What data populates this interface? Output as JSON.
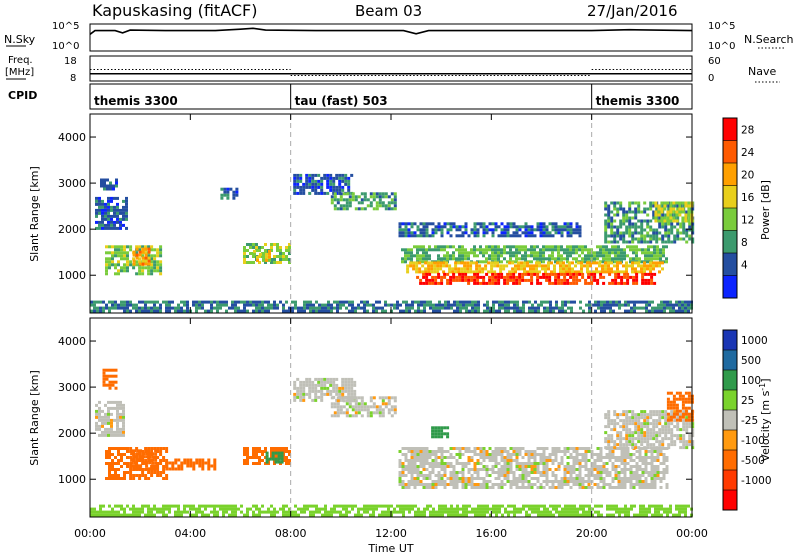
{
  "header": {
    "station": "Kapuskasing (fitACF)",
    "beam": "Beam 03",
    "date": "27/Jan/2016"
  },
  "strip_nsky": {
    "label": "N.Sky",
    "left_ticks": [
      "10^5",
      "10^0"
    ],
    "right_ticks": [
      "10^5",
      "10^0"
    ],
    "right_label": "N.Search",
    "nsky_trace": [
      {
        "t": 0.0,
        "v": 3.2
      },
      {
        "t": 0.2,
        "v": 4.0
      },
      {
        "t": 1.0,
        "v": 4.0
      },
      {
        "t": 1.3,
        "v": 3.5
      },
      {
        "t": 1.6,
        "v": 4.1
      },
      {
        "t": 3.0,
        "v": 4.0
      },
      {
        "t": 5.0,
        "v": 4.0
      },
      {
        "t": 6.0,
        "v": 4.3
      },
      {
        "t": 6.5,
        "v": 4.5
      },
      {
        "t": 7.0,
        "v": 4.1
      },
      {
        "t": 9.0,
        "v": 4.0
      },
      {
        "t": 12.5,
        "v": 4.0
      },
      {
        "t": 13.0,
        "v": 3.3
      },
      {
        "t": 13.5,
        "v": 4.0
      },
      {
        "t": 18.0,
        "v": 4.0
      },
      {
        "t": 20.0,
        "v": 4.0
      },
      {
        "t": 21.5,
        "v": 4.2
      },
      {
        "t": 24.0,
        "v": 4.0
      }
    ]
  },
  "strip_freq": {
    "label_top": "Freq.",
    "label_bottom": "[MHz]",
    "left_ticks": [
      "18",
      "8"
    ],
    "right_ticks": [
      "60",
      "0"
    ],
    "right_label": "Nave",
    "freq_mhz": 10.5,
    "nave_segments": [
      {
        "start": 0,
        "end": 8,
        "value": 27
      },
      {
        "start": 8,
        "end": 20,
        "value": 10
      },
      {
        "start": 20,
        "end": 24,
        "value": 27
      }
    ]
  },
  "cpid": {
    "label": "CPID",
    "segments": [
      {
        "start": 0,
        "end": 8,
        "name": "themis 3300"
      },
      {
        "start": 8,
        "end": 20,
        "name": "tau (fast) 503"
      },
      {
        "start": 20,
        "end": 24,
        "name": "themis 3300"
      }
    ]
  },
  "power_panel": {
    "ylabel": "Slant Range [km]",
    "yticks": [
      "4000",
      "3000",
      "2000",
      "1000"
    ],
    "ylim": [
      180,
      4500
    ]
  },
  "velocity_panel": {
    "ylabel": "Slant Range [km]",
    "yticks": [
      "4000",
      "3000",
      "2000",
      "1000"
    ],
    "ylim": [
      180,
      4500
    ]
  },
  "time_axis": {
    "label": "Time UT",
    "ticks": [
      "00:00",
      "04:00",
      "08:00",
      "12:00",
      "16:00",
      "20:00",
      "00:00"
    ],
    "range_hours": [
      0,
      24
    ]
  },
  "power_scale": {
    "label": "Power [dB]",
    "ticks": [
      "28",
      "24",
      "20",
      "16",
      "12",
      "8",
      "4"
    ],
    "colors": [
      "#ff0000",
      "#ff5a00",
      "#ffa000",
      "#e8cf1c",
      "#7acc3c",
      "#3c9a6e",
      "#244ea0",
      "#0c24ff"
    ]
  },
  "velocity_scale": {
    "label": "Velocity [m s",
    "label_sup": "-1",
    "label_end": "]",
    "ticks": [
      "1000",
      "500",
      "100",
      "25",
      "-25",
      "-100",
      "-500",
      "-1000"
    ],
    "colors": [
      "#1a36b4",
      "#1f6aa0",
      "#2f9a4a",
      "#7ad22c",
      "#c0c0b8",
      "#ff9a10",
      "#ff6c00",
      "#ff3a00",
      "#ff0000"
    ]
  },
  "chart_data": [
    {
      "type": "heatmap",
      "title": "Power",
      "xlabel": "Time UT",
      "ylabel": "Slant Range [km]",
      "xlim": [
        0,
        24
      ],
      "ylim": [
        180,
        4500
      ],
      "colorbar": "Power [dB]",
      "regions": [
        {
          "t0": 0.2,
          "t1": 1.4,
          "r0": 2000,
          "r1": 2700,
          "value": 6
        },
        {
          "t0": 0.6,
          "t1": 2.8,
          "r0": 1050,
          "r1": 1650,
          "value": 14
        },
        {
          "t0": 1.7,
          "t1": 2.4,
          "r0": 1250,
          "r1": 1600,
          "value": 22
        },
        {
          "t0": 0.4,
          "t1": 1.0,
          "r0": 2900,
          "r1": 3100,
          "value": 6
        },
        {
          "t0": 5.2,
          "t1": 5.8,
          "r0": 2700,
          "r1": 2900,
          "value": 6
        },
        {
          "t0": 6.1,
          "t1": 7.9,
          "r0": 1300,
          "r1": 1700,
          "value": 14
        },
        {
          "t0": 6.5,
          "t1": 7.2,
          "r0": 1350,
          "r1": 1550,
          "value": 18
        },
        {
          "t0": 8.1,
          "t1": 10.4,
          "r0": 2750,
          "r1": 3200,
          "value": 6
        },
        {
          "t0": 9.6,
          "t1": 12.2,
          "r0": 2450,
          "r1": 2800,
          "value": 11
        },
        {
          "t0": 12.3,
          "t1": 19.5,
          "r0": 1850,
          "r1": 2150,
          "value": 6
        },
        {
          "t0": 12.4,
          "t1": 23.0,
          "r0": 1300,
          "r1": 1650,
          "value": 12
        },
        {
          "t0": 12.6,
          "t1": 22.8,
          "r0": 1050,
          "r1": 1300,
          "value": 20
        },
        {
          "t0": 13.0,
          "t1": 22.5,
          "r0": 850,
          "r1": 1050,
          "value": 28
        },
        {
          "t0": 20.5,
          "t1": 24.0,
          "r0": 1700,
          "r1": 2600,
          "value": 10
        },
        {
          "t0": 22.5,
          "t1": 24.0,
          "r0": 2200,
          "r1": 2600,
          "value": 16
        },
        {
          "t0": 0.0,
          "t1": 24.0,
          "r0": 250,
          "r1": 450,
          "value": 8
        }
      ]
    },
    {
      "type": "heatmap",
      "title": "Velocity",
      "xlabel": "Time UT",
      "ylabel": "Slant Range [km]",
      "xlim": [
        0,
        24
      ],
      "ylim": [
        180,
        4500
      ],
      "colorbar": "Velocity [m s-1]",
      "regions": [
        {
          "t0": 0.2,
          "t1": 1.3,
          "r0": 1950,
          "r1": 2700,
          "value": 0
        },
        {
          "t0": 0.6,
          "t1": 3.0,
          "r0": 1000,
          "r1": 1700,
          "value": -150
        },
        {
          "t0": 1.6,
          "t1": 2.6,
          "r0": 1250,
          "r1": 1650,
          "value": -400
        },
        {
          "t0": 0.5,
          "t1": 1.0,
          "r0": 3000,
          "r1": 3400,
          "value": -300
        },
        {
          "t0": 3.0,
          "t1": 5.0,
          "r0": 1250,
          "r1": 1450,
          "value": -300
        },
        {
          "t0": 6.1,
          "t1": 7.9,
          "r0": 1350,
          "r1": 1700,
          "value": -200
        },
        {
          "t0": 7.0,
          "t1": 7.6,
          "r0": 1400,
          "r1": 1600,
          "value": 150
        },
        {
          "t0": 8.1,
          "t1": 10.5,
          "r0": 2700,
          "r1": 3200,
          "value": 0
        },
        {
          "t0": 9.6,
          "t1": 12.2,
          "r0": 2400,
          "r1": 2800,
          "value": 0
        },
        {
          "t0": 12.3,
          "t1": 23.0,
          "r0": 850,
          "r1": 1700,
          "value": 0
        },
        {
          "t0": 13.6,
          "t1": 14.3,
          "r0": 1950,
          "r1": 2150,
          "value": 150
        },
        {
          "t0": 20.5,
          "t1": 24.0,
          "r0": 1700,
          "r1": 2500,
          "value": 0
        },
        {
          "t0": 23.0,
          "t1": 24.0,
          "r0": 2250,
          "r1": 2900,
          "value": -350
        },
        {
          "t0": 0.0,
          "t1": 24.0,
          "r0": 250,
          "r1": 450,
          "value": 60
        }
      ]
    }
  ]
}
